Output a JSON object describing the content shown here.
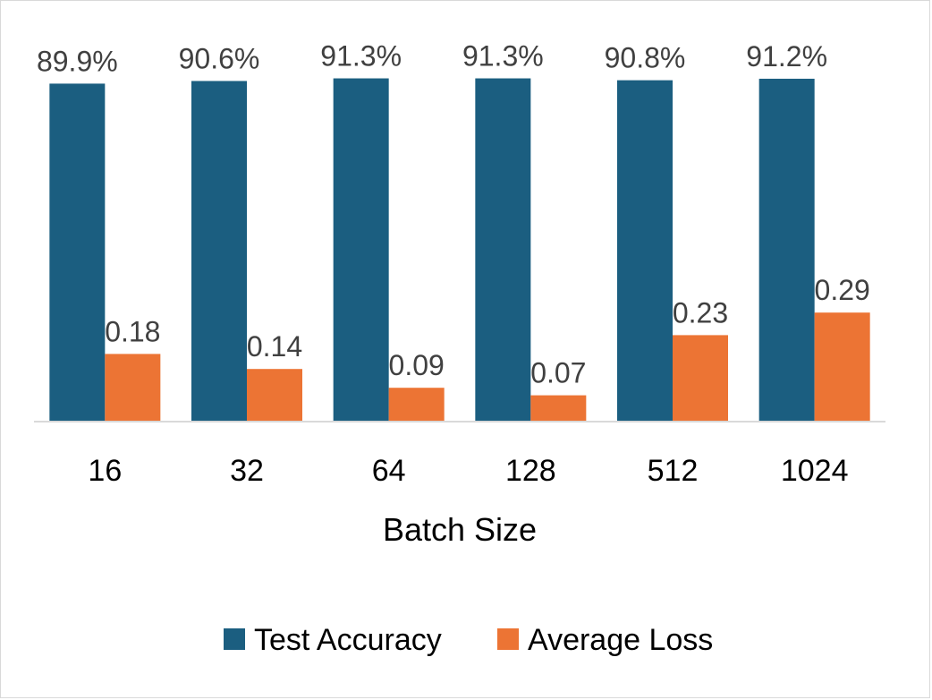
{
  "chart_data": {
    "type": "bar",
    "title": "",
    "xlabel": "Batch Size",
    "ylabel": "",
    "categories": [
      "16",
      "32",
      "64",
      "128",
      "512",
      "1024"
    ],
    "series": [
      {
        "name": "Test Accuracy",
        "color": "#1b5e80",
        "values": [
          0.899,
          0.906,
          0.913,
          0.913,
          0.908,
          0.912
        ],
        "labels": [
          "89.9%",
          "90.6%",
          "91.3%",
          "91.3%",
          "90.8%",
          "91.2%"
        ]
      },
      {
        "name": "Average Loss",
        "color": "#ec7434",
        "values": [
          0.18,
          0.14,
          0.09,
          0.07,
          0.23,
          0.29
        ],
        "labels": [
          "0.18",
          "0.14",
          "0.09",
          "0.07",
          "0.23",
          "0.29"
        ]
      }
    ],
    "ylim": [
      0,
      1
    ],
    "grid": false,
    "legend": "bottom"
  }
}
